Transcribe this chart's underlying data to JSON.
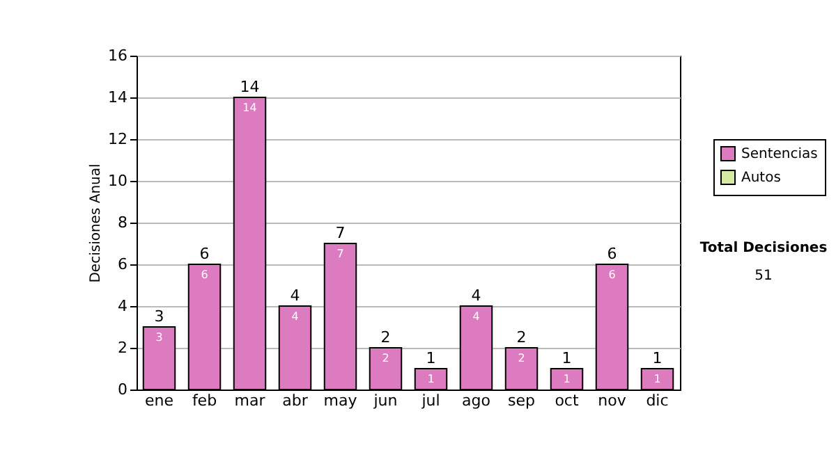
{
  "chart_data": {
    "type": "bar",
    "stacked": true,
    "ylabel": "Decisiones Anual",
    "categories": [
      "ene",
      "feb",
      "mar",
      "abr",
      "may",
      "jun",
      "jul",
      "ago",
      "sep",
      "oct",
      "nov",
      "dic"
    ],
    "series": [
      {
        "name": "Sentencias",
        "color": "#dd7bc0",
        "values": [
          3,
          6,
          14,
          4,
          7,
          2,
          1,
          4,
          2,
          1,
          6,
          1
        ]
      },
      {
        "name": "Autos",
        "color": "#d4eaa0",
        "values": [
          null,
          null,
          null,
          null,
          null,
          null,
          null,
          null,
          null,
          null,
          null,
          null
        ]
      }
    ],
    "totals": [
      "3",
      "6",
      "14",
      "4",
      "7",
      "2",
      "1",
      "4",
      "2",
      "1",
      "6",
      "1"
    ],
    "data_labels": true,
    "ylim": [
      0,
      16
    ],
    "yticks": [
      0,
      2,
      4,
      6,
      8,
      10,
      12,
      14,
      16
    ],
    "grid": "y",
    "legend": "right",
    "annotations": [
      "Total Decisiones",
      "51"
    ]
  }
}
